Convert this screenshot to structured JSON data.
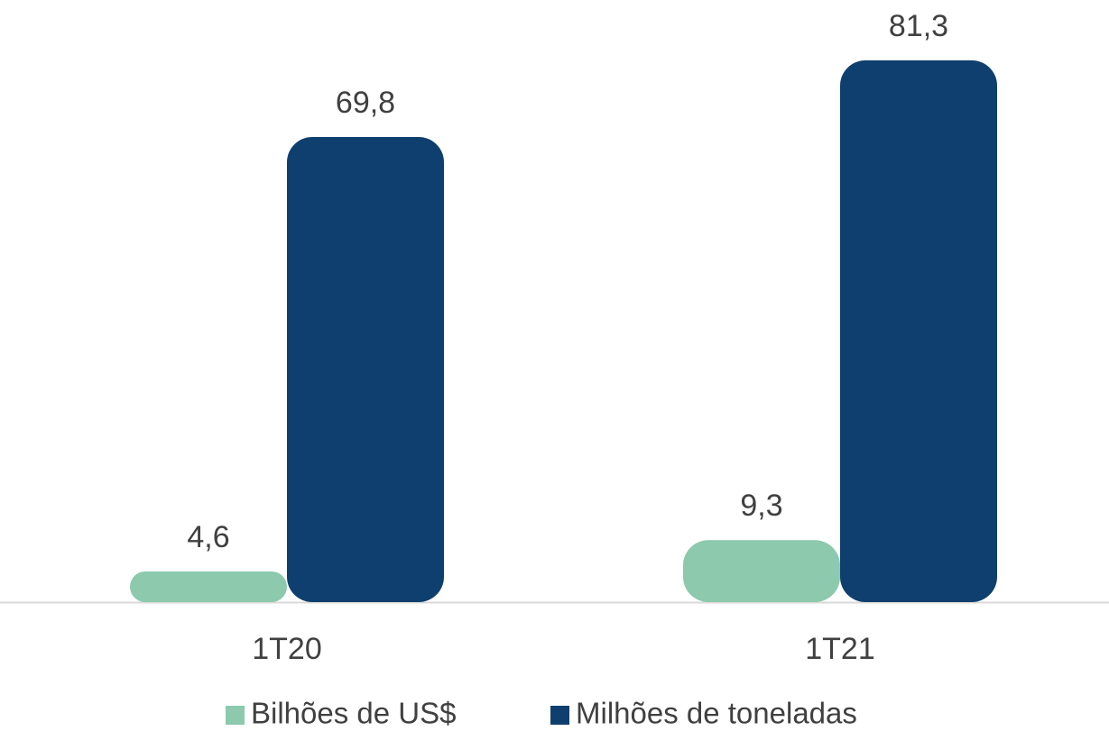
{
  "chart_data": {
    "type": "bar",
    "categories": [
      "1T20",
      "1T21"
    ],
    "series": [
      {
        "name": "Bilhões de US$",
        "color": "#8cc9ad",
        "values": [
          4.6,
          9.3
        ],
        "value_labels": [
          "4,6",
          "9,3"
        ]
      },
      {
        "name": "Milhões de toneladas",
        "color": "#0f3f6e",
        "values": [
          69.8,
          81.3
        ],
        "value_labels": [
          "69,8",
          "81,3"
        ]
      }
    ]
  }
}
